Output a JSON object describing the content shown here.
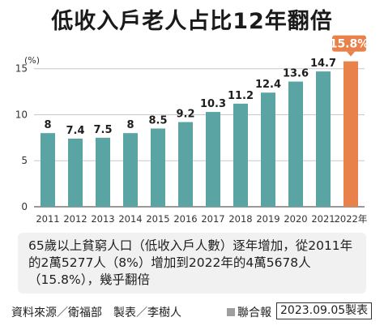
{
  "title": "低收入戶老人占比12年翻倍",
  "chart_data": {
    "type": "bar",
    "unit_label": "(%)",
    "categories": [
      "2011",
      "2012",
      "2013",
      "2014",
      "2015",
      "2016",
      "2017",
      "2018",
      "2019",
      "2020",
      "2021",
      "2022年"
    ],
    "values": [
      8,
      7.4,
      7.5,
      8,
      8.5,
      9.2,
      10.3,
      11.2,
      12.4,
      13.6,
      14.7,
      15.8
    ],
    "data_labels": [
      "8",
      "7.4",
      "7.5",
      "8",
      "8.5",
      "9.2",
      "10.3",
      "11.2",
      "12.4",
      "13.6",
      "14.7",
      "15.8%"
    ],
    "highlight_index": 11,
    "yticks": [
      "0",
      "5",
      "10",
      "15"
    ],
    "ylim": [
      0,
      17
    ],
    "grid": true,
    "colors": {
      "bar": "#5aa5a4",
      "highlight": "#e8814a",
      "grid": "#c8c8c8"
    }
  },
  "note": "65歲以上貧窮人口（低收入戶人數）逐年增加，從2011年的2萬5277人（8%）增加到2022年的4萬5678人（15.8%），幾乎翻倍",
  "footer": {
    "source": "資料來源／衛福部　製表／李樹人",
    "publisher": "聯合報",
    "date": "2023.09.05製表"
  }
}
